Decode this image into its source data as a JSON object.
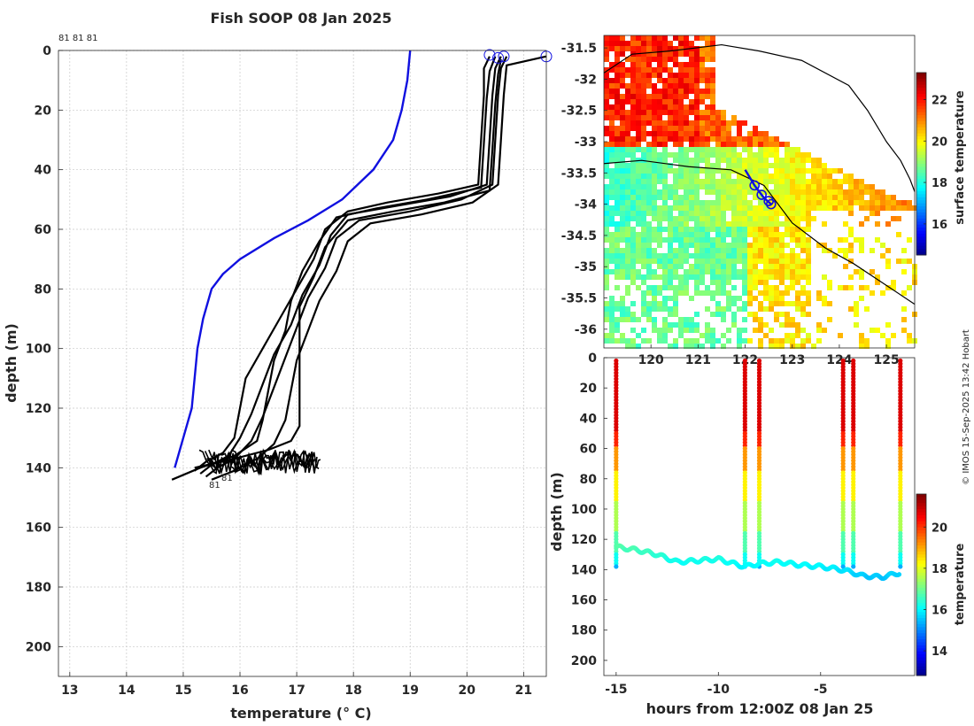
{
  "header": {
    "title": "Fish SOOP 08 Jan 2025",
    "copyright": "© IMOS 15-Sep-2025 13:42 Hobart"
  },
  "chart_data": [
    {
      "id": "profile",
      "type": "line",
      "xlabel": "temperature (° C)",
      "ylabel": "depth (m)",
      "xlim": [
        12.8,
        21.4
      ],
      "ylim": [
        210,
        0
      ],
      "x_ticks": [
        "13",
        "14",
        "15",
        "16",
        "17",
        "18",
        "19",
        "20",
        "21"
      ],
      "y_ticks": [
        "0",
        "20",
        "40",
        "60",
        "80",
        "100",
        "120",
        "140",
        "160",
        "180",
        "200"
      ],
      "grid": true,
      "top_labels": "81 81 81",
      "bottom_label": "81",
      "bottom_label_secondary": "81",
      "climatology": {
        "name": "climatology",
        "color": "#1010e0",
        "points": [
          [
            19.0,
            0
          ],
          [
            18.95,
            10
          ],
          [
            18.85,
            20
          ],
          [
            18.7,
            30
          ],
          [
            18.35,
            40
          ],
          [
            17.8,
            50
          ],
          [
            17.2,
            57
          ],
          [
            16.6,
            63
          ],
          [
            16.0,
            70
          ],
          [
            15.7,
            75
          ],
          [
            15.5,
            80
          ],
          [
            15.35,
            90
          ],
          [
            15.25,
            100
          ],
          [
            15.2,
            110
          ],
          [
            15.15,
            120
          ],
          [
            15.0,
            130
          ],
          [
            14.85,
            140
          ]
        ]
      },
      "profiles": [
        {
          "name": "profile-1",
          "points": [
            [
              20.4,
              2
            ],
            [
              20.3,
              6
            ],
            [
              20.3,
              15
            ],
            [
              20.25,
              30
            ],
            [
              20.2,
              45
            ],
            [
              19.5,
              48
            ],
            [
              18.6,
              51
            ],
            [
              17.9,
              54
            ],
            [
              17.5,
              60
            ],
            [
              17.3,
              70
            ],
            [
              17.0,
              80
            ],
            [
              16.7,
              90
            ],
            [
              16.4,
              100
            ],
            [
              16.1,
              110
            ],
            [
              16.0,
              120
            ],
            [
              15.9,
              130
            ],
            [
              15.7,
              135
            ],
            [
              15.4,
              138
            ],
            [
              15.2,
              141
            ]
          ]
        },
        {
          "name": "profile-2",
          "points": [
            [
              20.6,
              2
            ],
            [
              20.5,
              6
            ],
            [
              20.45,
              15
            ],
            [
              20.4,
              30
            ],
            [
              20.35,
              45
            ],
            [
              19.7,
              49
            ],
            [
              18.8,
              52
            ],
            [
              17.9,
              55
            ],
            [
              17.6,
              62
            ],
            [
              17.4,
              72
            ],
            [
              17.1,
              82
            ],
            [
              16.9,
              92
            ],
            [
              16.6,
              102
            ],
            [
              16.4,
              112
            ],
            [
              16.2,
              122
            ],
            [
              16.0,
              130
            ],
            [
              15.8,
              136
            ],
            [
              15.5,
              139
            ],
            [
              15.3,
              142
            ]
          ]
        },
        {
          "name": "profile-3",
          "points": [
            [
              20.7,
              2
            ],
            [
              20.6,
              6
            ],
            [
              20.55,
              15
            ],
            [
              20.5,
              30
            ],
            [
              20.45,
              45
            ],
            [
              19.9,
              50
            ],
            [
              19.0,
              54
            ],
            [
              18.1,
              57
            ],
            [
              17.7,
              63
            ],
            [
              17.5,
              73
            ],
            [
              17.2,
              83
            ],
            [
              17.0,
              93
            ],
            [
              16.8,
              103
            ],
            [
              16.6,
              113
            ],
            [
              16.4,
              123
            ],
            [
              16.2,
              131
            ],
            [
              15.9,
              137
            ],
            [
              15.6,
              140
            ],
            [
              15.4,
              143
            ]
          ]
        },
        {
          "name": "profile-4",
          "points": [
            [
              21.4,
              2
            ],
            [
              20.7,
              5
            ],
            [
              20.65,
              15
            ],
            [
              20.6,
              30
            ],
            [
              20.55,
              45
            ],
            [
              20.1,
              51
            ],
            [
              19.2,
              55
            ],
            [
              18.3,
              58
            ],
            [
              17.9,
              64
            ],
            [
              17.7,
              74
            ],
            [
              17.4,
              84
            ],
            [
              17.2,
              94
            ],
            [
              17.0,
              104
            ],
            [
              16.9,
              114
            ],
            [
              16.8,
              124
            ],
            [
              16.6,
              132
            ],
            [
              16.3,
              137
            ],
            [
              15.9,
              141
            ],
            [
              15.5,
              144
            ]
          ]
        },
        {
          "name": "profile-5",
          "points": [
            [
              20.5,
              2
            ],
            [
              20.4,
              7
            ],
            [
              20.35,
              16
            ],
            [
              20.3,
              31
            ],
            [
              20.25,
              46
            ],
            [
              19.3,
              50
            ],
            [
              18.4,
              53
            ],
            [
              17.7,
              56
            ],
            [
              17.4,
              64
            ],
            [
              17.1,
              74
            ],
            [
              16.9,
              84
            ],
            [
              16.8,
              94
            ],
            [
              16.6,
              104
            ],
            [
              16.5,
              114
            ],
            [
              16.4,
              124
            ],
            [
              16.3,
              131
            ],
            [
              15.9,
              136
            ],
            [
              15.3,
              140
            ],
            [
              14.8,
              144
            ]
          ]
        },
        {
          "name": "profile-6",
          "points": [
            [
              20.6,
              3
            ],
            [
              20.55,
              8
            ],
            [
              20.5,
              18
            ],
            [
              20.45,
              33
            ],
            [
              20.4,
              47
            ],
            [
              19.6,
              51
            ],
            [
              18.7,
              54
            ],
            [
              17.9,
              57
            ],
            [
              17.5,
              66
            ],
            [
              17.3,
              76
            ],
            [
              17.05,
              86
            ],
            [
              17.05,
              96
            ],
            [
              17.05,
              106
            ],
            [
              17.05,
              116
            ],
            [
              17.05,
              126
            ],
            [
              16.9,
              131
            ],
            [
              16.5,
              134
            ],
            [
              15.9,
              137
            ],
            [
              15.2,
              140
            ]
          ]
        }
      ],
      "surface_markers": [
        {
          "t": 20.4,
          "d": 1.5
        },
        {
          "t": 20.55,
          "d": 2.5
        },
        {
          "t": 20.65,
          "d": 2.0
        },
        {
          "t": 21.4,
          "d": 2.0
        }
      ]
    },
    {
      "id": "map",
      "type": "heatmap",
      "colorbar_label": "surface temperature",
      "colorbar_ticks": [
        "16",
        "18",
        "20",
        "22"
      ],
      "colorbar_range": [
        14.5,
        23.3
      ],
      "lat_ticks": [
        "-31.5",
        "-32",
        "-32.5",
        "-33",
        "-33.5",
        "-34",
        "-34.5",
        "-35",
        "-35.5",
        "-36"
      ],
      "lon_ticks": [
        "120",
        "121",
        "122",
        "123",
        "124",
        "125"
      ],
      "lat_range": [
        -31.3,
        -36.3
      ],
      "lon_range": [
        119.0,
        125.6
      ],
      "track": [
        [
          122.0,
          -33.45
        ],
        [
          122.2,
          -33.7
        ],
        [
          122.4,
          -33.9
        ],
        [
          122.55,
          -34.0
        ]
      ],
      "stations": [
        [
          122.2,
          -33.7
        ],
        [
          122.35,
          -33.85
        ],
        [
          122.5,
          -33.95
        ],
        [
          122.55,
          -34.0
        ]
      ]
    },
    {
      "id": "section",
      "type": "scatter",
      "xlabel": "hours from 12:00Z 08 Jan 25",
      "ylabel": "depth (m)",
      "x_ticks": [
        "-15",
        "-10",
        "-5"
      ],
      "y_ticks": [
        "0",
        "20",
        "40",
        "60",
        "80",
        "100",
        "120",
        "140",
        "160",
        "180",
        "200"
      ],
      "xlim": [
        -15.6,
        -0.4
      ],
      "ylim": [
        210,
        0
      ],
      "colorbar_label": "temperature",
      "colorbar_ticks": [
        "14",
        "16",
        "18",
        "20"
      ],
      "colorbar_range": [
        12.8,
        21.6
      ],
      "casts_hours": [
        -15.0,
        -8.7,
        -8.0,
        -3.9,
        -3.4,
        -1.1
      ],
      "bottom_trace": [
        [
          -15,
          125
        ],
        [
          -14,
          127
        ],
        [
          -13,
          130
        ],
        [
          -12,
          135
        ],
        [
          -11,
          134
        ],
        [
          -10,
          133
        ],
        [
          -9,
          137
        ],
        [
          -8.7,
          138
        ],
        [
          -8,
          136
        ],
        [
          -7,
          135
        ],
        [
          -6,
          137
        ],
        [
          -5,
          138
        ],
        [
          -4,
          140
        ],
        [
          -3.4,
          142
        ],
        [
          -3,
          144
        ],
        [
          -2,
          145
        ],
        [
          -1.1,
          142
        ]
      ]
    }
  ]
}
